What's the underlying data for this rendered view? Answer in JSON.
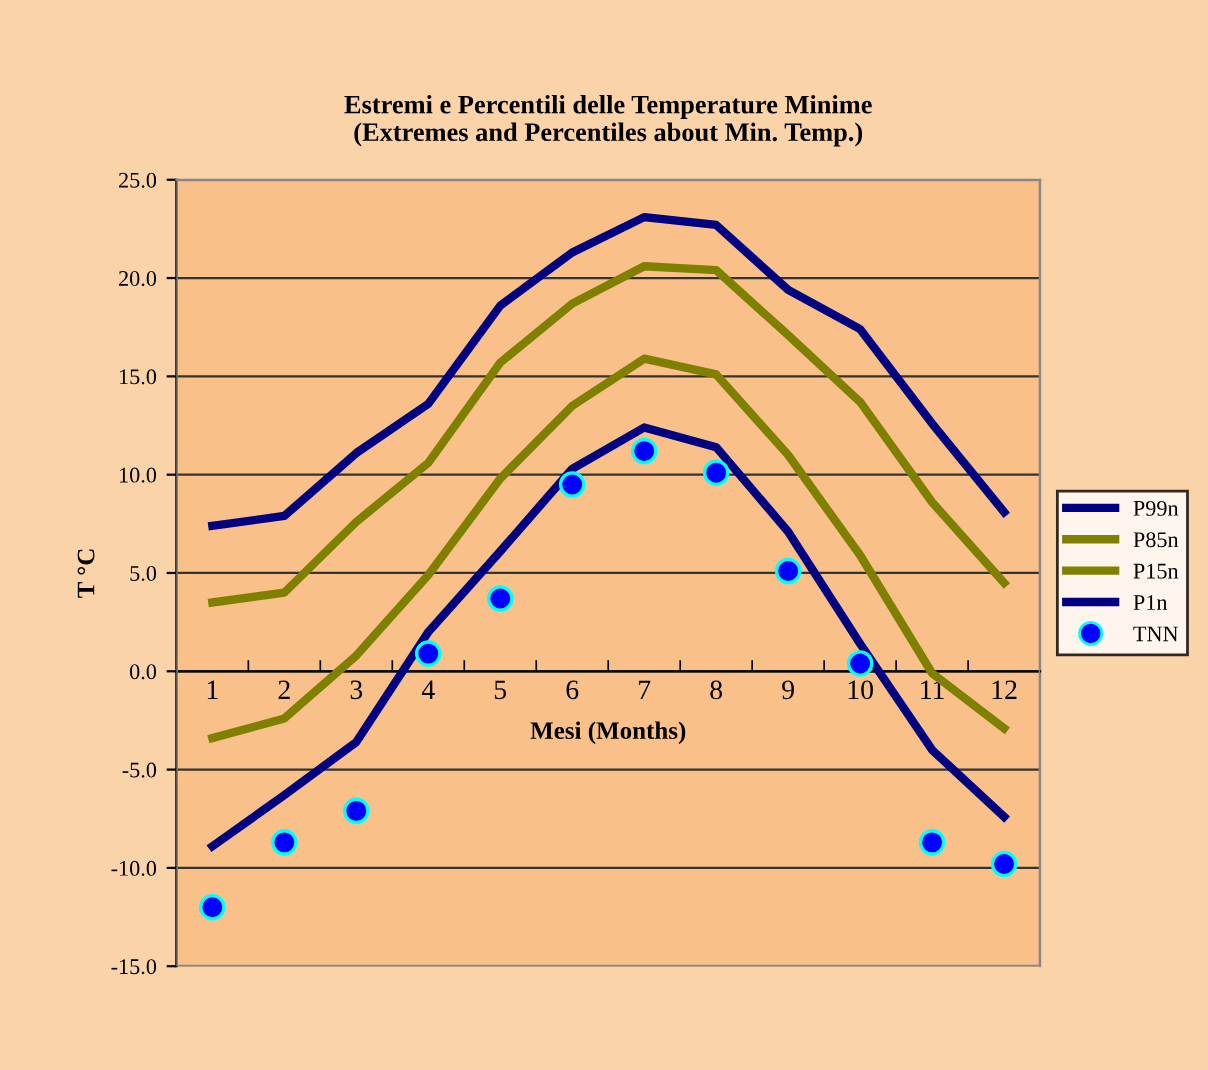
{
  "chart_data": {
    "type": "line",
    "title": "Estremi e Percentili delle Temperature Minime\n(Extremes and Percentiles about Min. Temp.)",
    "xlabel": "Mesi (Months)",
    "ylabel": "T °C",
    "categories": [
      "1",
      "2",
      "3",
      "4",
      "5",
      "6",
      "7",
      "8",
      "9",
      "10",
      "11",
      "12"
    ],
    "series": [
      {
        "name": "P99n",
        "color": "#000080",
        "values": [
          7.4,
          7.9,
          11.1,
          13.6,
          18.6,
          21.3,
          23.1,
          22.7,
          19.4,
          17.4,
          12.6,
          8.1
        ]
      },
      {
        "name": "P85n",
        "color": "#808000",
        "values": [
          3.5,
          4.0,
          7.6,
          10.6,
          15.7,
          18.7,
          20.6,
          20.4,
          17.1,
          13.7,
          8.6,
          4.5
        ]
      },
      {
        "name": "P15n",
        "color": "#808000",
        "values": [
          -3.4,
          -2.4,
          0.8,
          4.9,
          9.8,
          13.5,
          15.9,
          15.1,
          11.0,
          5.9,
          -0.1,
          -2.9
        ]
      },
      {
        "name": "P1n",
        "color": "#000080",
        "values": [
          -8.9,
          -6.3,
          -3.6,
          2.0,
          6.1,
          10.3,
          12.4,
          11.4,
          7.1,
          1.4,
          -4.0,
          -7.4
        ]
      },
      {
        "name": "TNN",
        "type": "scatter",
        "marker": "circle",
        "color": "#0000ff",
        "values": [
          -12.0,
          -8.7,
          -7.1,
          0.9,
          3.7,
          9.5,
          11.2,
          10.1,
          5.1,
          0.4,
          -8.7,
          -9.8
        ]
      }
    ],
    "ylim": [
      -15,
      25
    ],
    "yticks": [
      {
        "value": -15,
        "label": "-15.0"
      },
      {
        "value": -10,
        "label": "-10.0"
      },
      {
        "value": -5,
        "label": "-5.0"
      },
      {
        "value": 0,
        "label": "0.0"
      },
      {
        "value": 5,
        "label": "5.0"
      },
      {
        "value": 10,
        "label": "10.0"
      },
      {
        "value": 15,
        "label": "15.0"
      },
      {
        "value": 20,
        "label": "20.0"
      },
      {
        "value": 25,
        "label": "25.0"
      }
    ],
    "grid": "y",
    "legend": "right"
  }
}
